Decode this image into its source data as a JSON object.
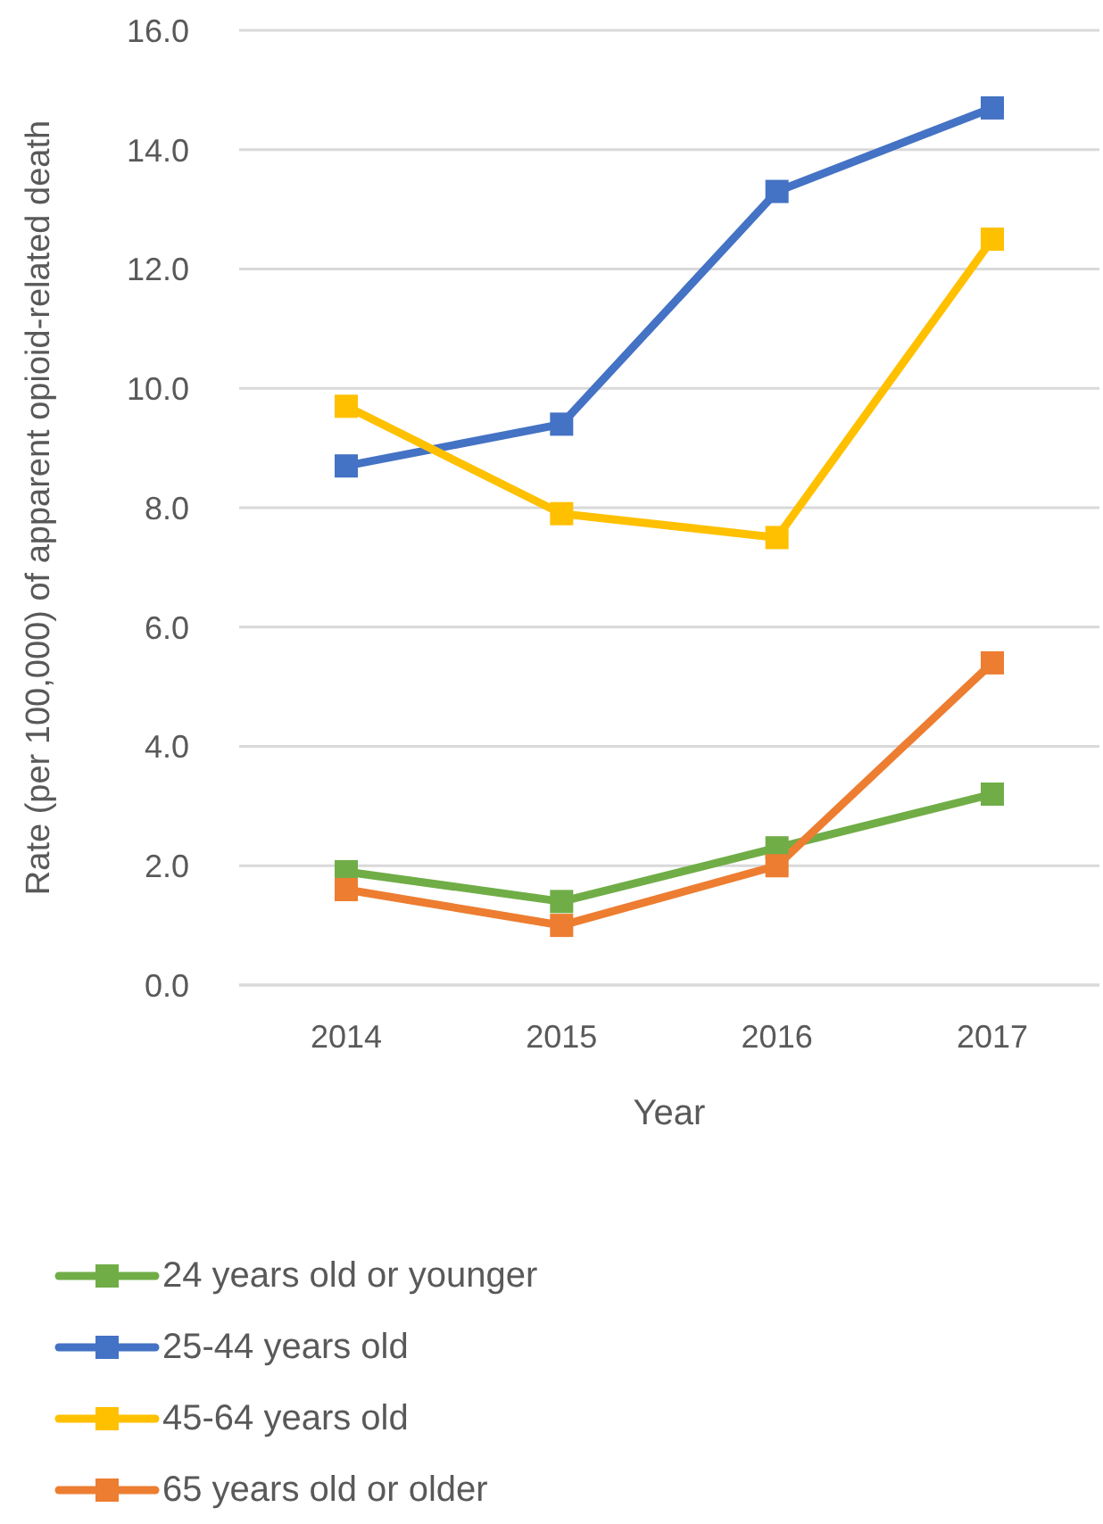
{
  "chart_data": {
    "type": "line",
    "xlabel": "Year",
    "ylabel": "Rate (per 100,000) of apparent opioid-related death",
    "categories": [
      "2014",
      "2015",
      "2016",
      "2017"
    ],
    "series": [
      {
        "name": "24 years old or younger",
        "color": "#70ad47",
        "values": [
          1.9,
          1.4,
          2.3,
          3.2
        ]
      },
      {
        "name": "25-44 years old",
        "color": "#4472c4",
        "values": [
          8.7,
          9.4,
          13.3,
          14.7
        ]
      },
      {
        "name": "45-64 years old",
        "color": "#ffc000",
        "values": [
          9.7,
          7.9,
          7.5,
          12.5
        ]
      },
      {
        "name": "65 years old or older",
        "color": "#ed7d31",
        "values": [
          1.6,
          1.0,
          2.0,
          5.4
        ]
      }
    ],
    "ylim": [
      0,
      16
    ],
    "yticks": [
      {
        "value": 0,
        "label": "0.0"
      },
      {
        "value": 2,
        "label": "2.0"
      },
      {
        "value": 4,
        "label": "4.0"
      },
      {
        "value": 6,
        "label": "6.0"
      },
      {
        "value": 8,
        "label": "8.0"
      },
      {
        "value": 10,
        "label": "10.0"
      },
      {
        "value": 12,
        "label": "12.0"
      },
      {
        "value": 14,
        "label": "14.0"
      },
      {
        "value": 16,
        "label": "16.0"
      }
    ],
    "grid": "y",
    "legend": "bottom left",
    "marker": "square",
    "line_style": "solid"
  }
}
